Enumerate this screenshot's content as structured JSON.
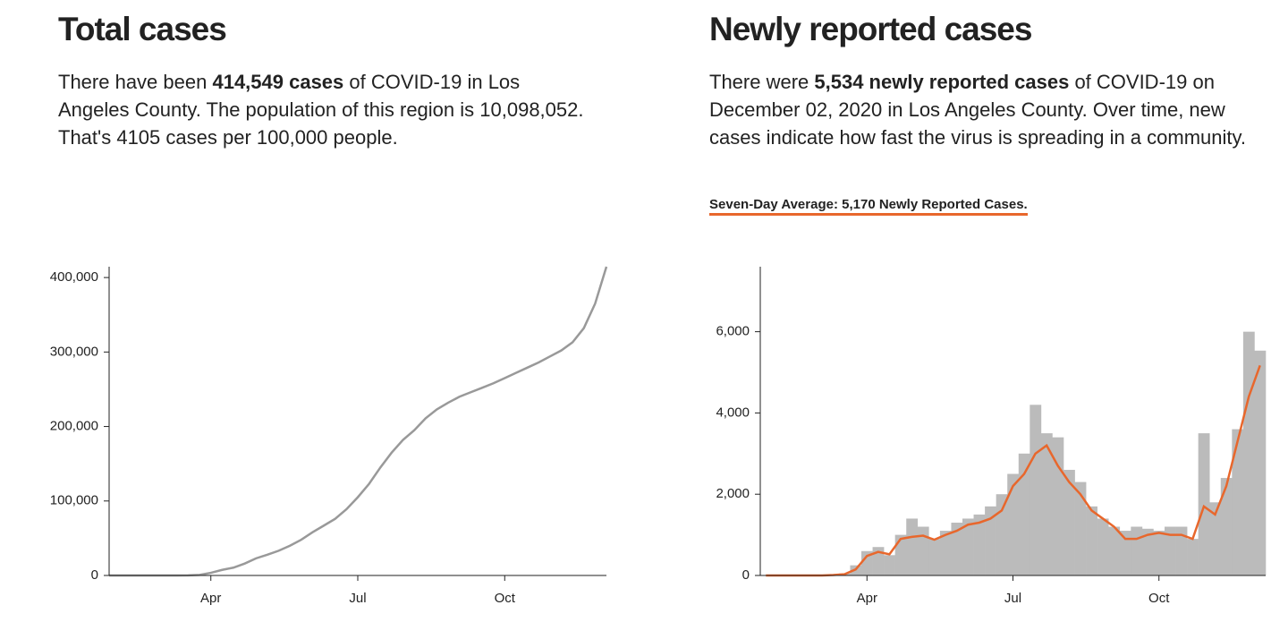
{
  "chart_data": [
    {
      "type": "line",
      "title": "Total cases",
      "description": [
        "There have been ",
        "414,549 cases",
        " of COVID-19 in Los Angeles County. The population of this region is 10,098,052. That's 4105 cases per 100,000 people."
      ],
      "categories": [
        null,
        null,
        null,
        null,
        null,
        null,
        null,
        null,
        null,
        "Apr",
        null,
        null,
        null,
        null,
        null,
        null,
        null,
        null,
        null,
        null,
        null,
        null,
        "Jul",
        null,
        null,
        null,
        null,
        null,
        null,
        null,
        null,
        null,
        null,
        null,
        null,
        "Oct",
        null,
        null,
        null,
        null,
        null,
        null,
        null,
        null,
        null
      ],
      "values": [
        0,
        0,
        0,
        0,
        0,
        0,
        0,
        200,
        800,
        3500,
        7500,
        10500,
        16000,
        23000,
        27800,
        33200,
        40000,
        48000,
        58000,
        67000,
        76000,
        89000,
        105000,
        123000,
        145000,
        165000,
        182000,
        195000,
        211000,
        223000,
        232000,
        240000,
        246000,
        252000,
        258000,
        265000,
        272000,
        279000,
        286000,
        294000,
        302000,
        313000,
        332000,
        365000,
        414549
      ],
      "color": "#999999",
      "ylim": [
        0,
        414549
      ],
      "yticks": [
        0,
        {
          "value": 100000,
          "label": "100,000"
        },
        {
          "value": 200000,
          "label": "200,000"
        },
        {
          "value": 300000,
          "label": "300,000"
        },
        {
          "value": 400000,
          "label": "400,000"
        }
      ]
    },
    {
      "type": "bar",
      "title": "Newly reported cases",
      "description": [
        "There were ",
        "5,534 newly reported cases",
        " of COVID-19 on December 02, 2020 in Los Angeles County. Over time, new cases indicate how fast the virus is spreading in a community."
      ],
      "average_label": "Seven-Day Average: 5,170 Newly Reported Cases.",
      "categories": [
        null,
        null,
        null,
        null,
        null,
        null,
        null,
        null,
        null,
        "Apr",
        null,
        null,
        null,
        null,
        null,
        null,
        null,
        null,
        null,
        null,
        null,
        null,
        "Jul",
        null,
        null,
        null,
        null,
        null,
        null,
        null,
        null,
        null,
        null,
        null,
        null,
        "Oct",
        null,
        null,
        null,
        null,
        null,
        null,
        null,
        null,
        null
      ],
      "values": [
        0,
        0,
        0,
        0,
        0,
        0,
        20,
        50,
        250,
        600,
        700,
        500,
        1000,
        1400,
        1200,
        900,
        1100,
        1300,
        1400,
        1500,
        1700,
        2000,
        2500,
        3000,
        4200,
        3500,
        3400,
        2600,
        2300,
        1700,
        1400,
        1200,
        1100,
        1200,
        1150,
        1100,
        1200,
        1200,
        900,
        3500,
        1800,
        2400,
        3600,
        6000,
        5534
      ],
      "color": "#bbbbbb",
      "average_values": [
        0,
        0,
        0,
        0,
        0,
        0,
        10,
        30,
        150,
        480,
        580,
        520,
        900,
        950,
        980,
        880,
        1000,
        1100,
        1250,
        1300,
        1400,
        1600,
        2200,
        2500,
        3000,
        3200,
        2700,
        2300,
        2000,
        1600,
        1400,
        1200,
        900,
        900,
        1000,
        1050,
        1000,
        1000,
        900,
        1700,
        1500,
        2200,
        3300,
        4400,
        5170
      ],
      "average_color": "#e8672c",
      "ylim": [
        0,
        7600
      ],
      "yticks": [
        0,
        {
          "value": 2000,
          "label": "2,000"
        },
        {
          "value": 4000,
          "label": "4,000"
        },
        {
          "value": 6000,
          "label": "6,000"
        }
      ]
    }
  ]
}
